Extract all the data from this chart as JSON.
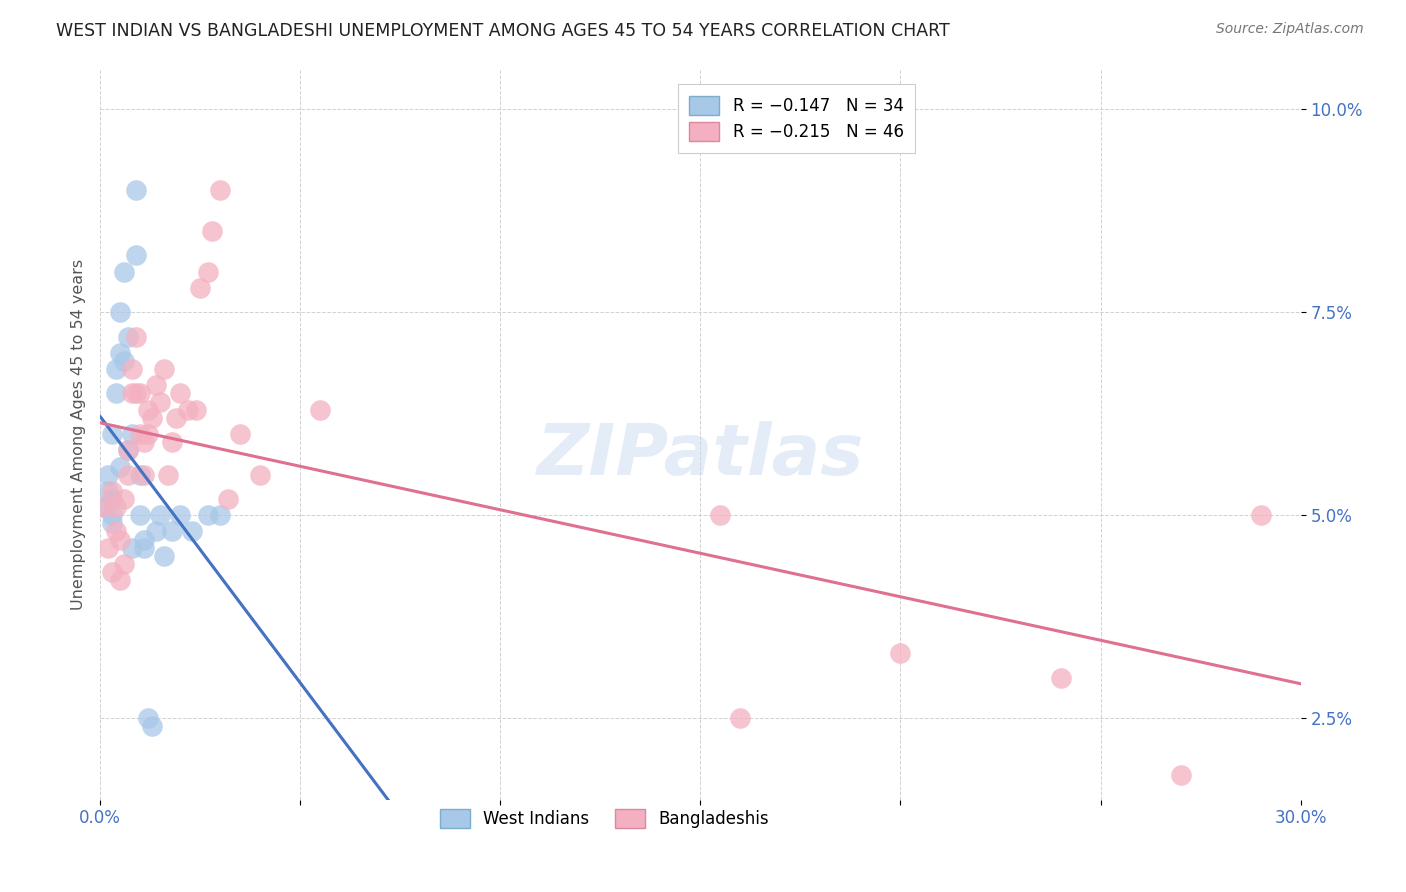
{
  "title": "WEST INDIAN VS BANGLADESHI UNEMPLOYMENT AMONG AGES 45 TO 54 YEARS CORRELATION CHART",
  "source": "Source: ZipAtlas.com",
  "ylabel": "Unemployment Among Ages 45 to 54 years",
  "ytick_labels": [
    "2.5%",
    "5.0%",
    "7.5%",
    "10.0%"
  ],
  "ytick_values": [
    0.025,
    0.05,
    0.075,
    0.1
  ],
  "xlim": [
    0.0,
    0.3
  ],
  "ylim": [
    0.015,
    0.105
  ],
  "legend_color1": "#a8c8e8",
  "legend_color2": "#f4b0c0",
  "watermark": "ZIPatlas",
  "wi_color": "#a8c8e8",
  "bd_color": "#f4b0c0",
  "wi_line_color": "#4472c4",
  "bd_line_color": "#e07090",
  "wi_dash_color": "#a0b8d8",
  "west_indians_x": [
    0.001,
    0.002,
    0.002,
    0.003,
    0.003,
    0.003,
    0.003,
    0.004,
    0.004,
    0.005,
    0.005,
    0.005,
    0.006,
    0.006,
    0.007,
    0.007,
    0.008,
    0.008,
    0.009,
    0.009,
    0.01,
    0.01,
    0.011,
    0.011,
    0.012,
    0.013,
    0.014,
    0.015,
    0.016,
    0.018,
    0.02,
    0.023,
    0.027,
    0.03
  ],
  "west_indians_y": [
    0.051,
    0.053,
    0.055,
    0.05,
    0.052,
    0.049,
    0.06,
    0.065,
    0.068,
    0.056,
    0.07,
    0.075,
    0.08,
    0.069,
    0.072,
    0.058,
    0.046,
    0.06,
    0.09,
    0.082,
    0.05,
    0.055,
    0.046,
    0.047,
    0.025,
    0.024,
    0.048,
    0.05,
    0.045,
    0.048,
    0.05,
    0.048,
    0.05,
    0.05
  ],
  "bangladeshis_x": [
    0.001,
    0.002,
    0.003,
    0.003,
    0.004,
    0.004,
    0.005,
    0.005,
    0.006,
    0.006,
    0.007,
    0.007,
    0.008,
    0.008,
    0.009,
    0.009,
    0.01,
    0.01,
    0.011,
    0.011,
    0.012,
    0.012,
    0.013,
    0.014,
    0.015,
    0.016,
    0.017,
    0.018,
    0.019,
    0.02,
    0.022,
    0.024,
    0.025,
    0.027,
    0.028,
    0.03,
    0.032,
    0.035,
    0.04,
    0.055,
    0.155,
    0.16,
    0.2,
    0.24,
    0.27,
    0.29
  ],
  "bangladeshis_y": [
    0.051,
    0.046,
    0.053,
    0.043,
    0.048,
    0.051,
    0.047,
    0.042,
    0.052,
    0.044,
    0.055,
    0.058,
    0.065,
    0.068,
    0.065,
    0.072,
    0.06,
    0.065,
    0.059,
    0.055,
    0.063,
    0.06,
    0.062,
    0.066,
    0.064,
    0.068,
    0.055,
    0.059,
    0.062,
    0.065,
    0.063,
    0.063,
    0.078,
    0.08,
    0.085,
    0.09,
    0.052,
    0.06,
    0.055,
    0.063,
    0.05,
    0.025,
    0.033,
    0.03,
    0.018,
    0.05
  ]
}
